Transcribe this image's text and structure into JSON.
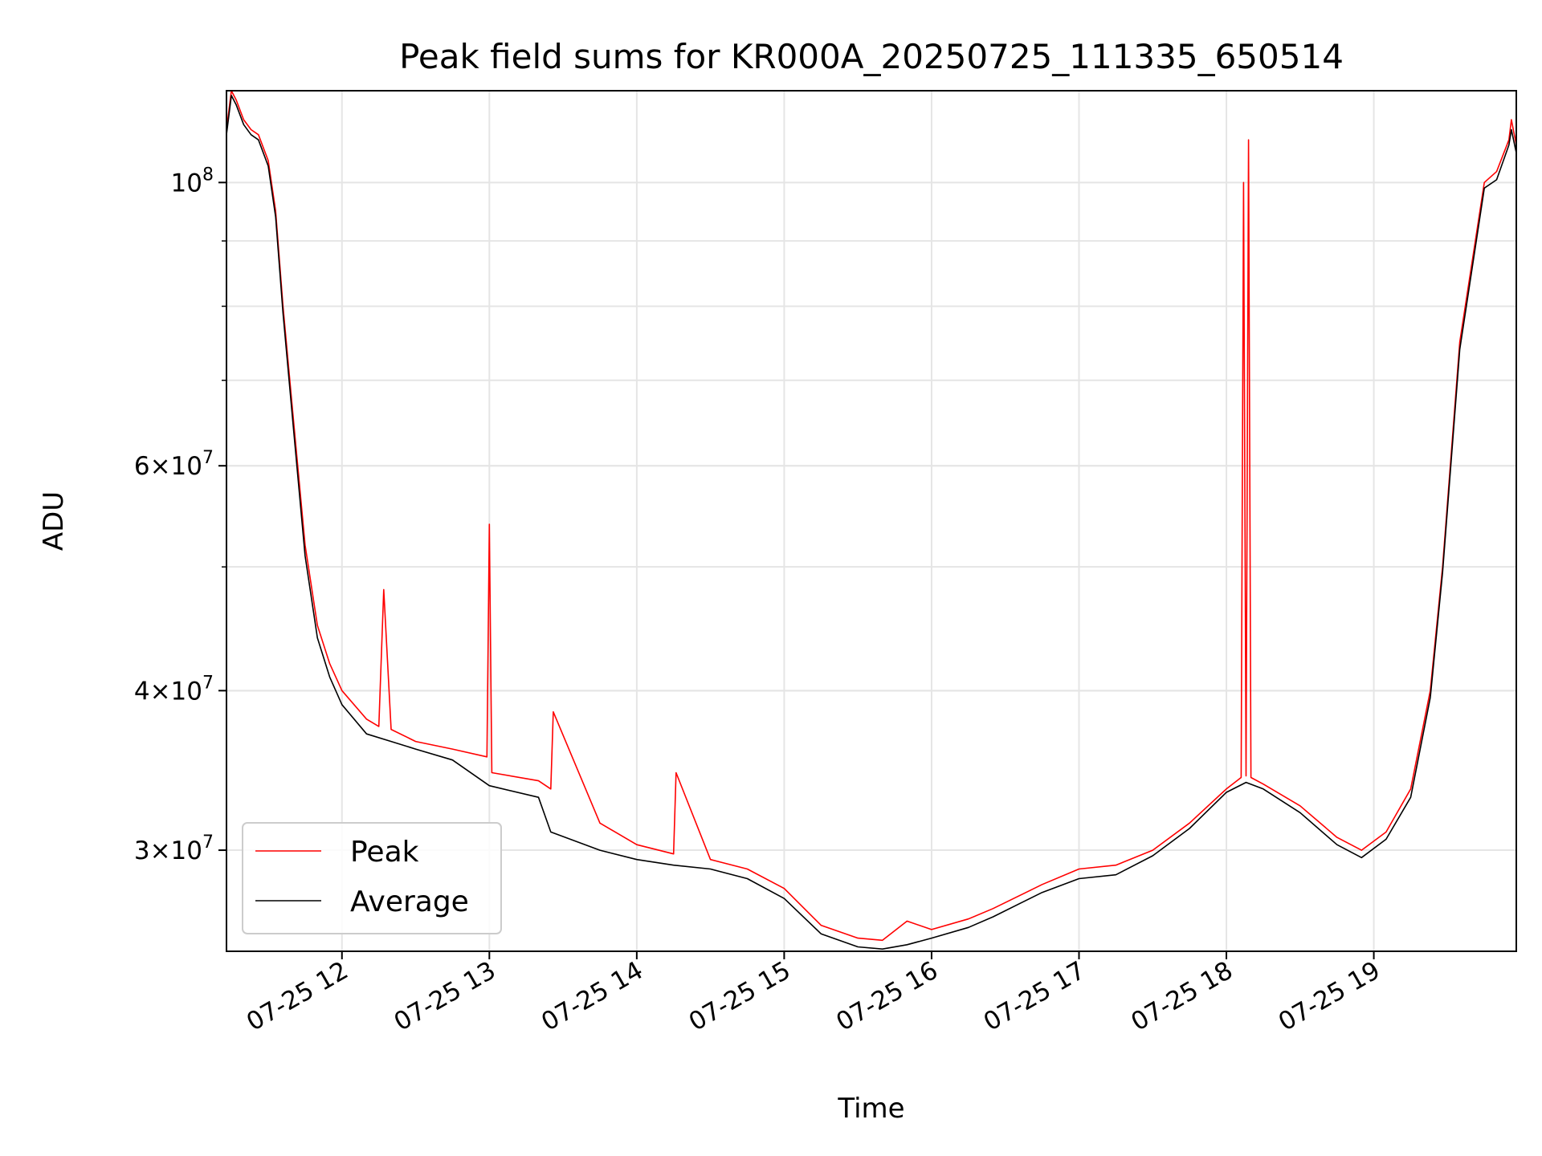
{
  "chart_data": {
    "type": "line",
    "title": "Peak field sums for KR000A_20250725_111335_650514",
    "xlabel": "Time",
    "ylabel": "ADU",
    "yscale": "log",
    "xlim": [
      "2025-07-25 11:13",
      "2025-07-25 19:58"
    ],
    "ylim": [
      25000000,
      118000000
    ],
    "x_tick_labels": [
      "07-25 12",
      "07-25 13",
      "07-25 14",
      "07-25 15",
      "07-25 16",
      "07-25 17",
      "07-25 18",
      "07-25 19"
    ],
    "y_tick_labels": [
      {
        "value": 100000000,
        "base": "10",
        "exp": "8",
        "mult": ""
      },
      {
        "value": 60000000,
        "base": "10",
        "exp": "7",
        "mult": "6×"
      },
      {
        "value": 40000000,
        "base": "10",
        "exp": "7",
        "mult": "4×"
      },
      {
        "value": 30000000,
        "base": "10",
        "exp": "7",
        "mult": "3×"
      }
    ],
    "grid": true,
    "legend_position": "lower-left",
    "series": [
      {
        "name": "Peak",
        "color": "#ff0000",
        "x": [
          "2025-07-25 11:13",
          "2025-07-25 11:14",
          "2025-07-25 11:15",
          "2025-07-25 11:17",
          "2025-07-25 11:20",
          "2025-07-25 11:23",
          "2025-07-25 11:26",
          "2025-07-25 11:30",
          "2025-07-25 11:33",
          "2025-07-25 11:36",
          "2025-07-25 11:40",
          "2025-07-25 11:45",
          "2025-07-25 11:50",
          "2025-07-25 11:55",
          "2025-07-25 12:00",
          "2025-07-25 12:10",
          "2025-07-25 12:15",
          "2025-07-25 12:17",
          "2025-07-25 12:20",
          "2025-07-25 12:30",
          "2025-07-25 12:45",
          "2025-07-25 12:59",
          "2025-07-25 13:00",
          "2025-07-25 13:01",
          "2025-07-25 13:20",
          "2025-07-25 13:25",
          "2025-07-25 13:26",
          "2025-07-25 13:45",
          "2025-07-25 14:00",
          "2025-07-25 14:15",
          "2025-07-25 14:16",
          "2025-07-25 14:30",
          "2025-07-25 14:45",
          "2025-07-25 15:00",
          "2025-07-25 15:15",
          "2025-07-25 15:30",
          "2025-07-25 15:40",
          "2025-07-25 15:50",
          "2025-07-25 16:00",
          "2025-07-25 16:15",
          "2025-07-25 16:25",
          "2025-07-25 16:45",
          "2025-07-25 17:00",
          "2025-07-25 17:15",
          "2025-07-25 17:30",
          "2025-07-25 17:45",
          "2025-07-25 18:00",
          "2025-07-25 18:06",
          "2025-07-25 18:07",
          "2025-07-25 18:08",
          "2025-07-25 18:09",
          "2025-07-25 18:10",
          "2025-07-25 18:15",
          "2025-07-25 18:30",
          "2025-07-25 18:45",
          "2025-07-25 18:55",
          "2025-07-25 19:05",
          "2025-07-25 19:15",
          "2025-07-25 19:23",
          "2025-07-25 19:28",
          "2025-07-25 19:35",
          "2025-07-25 19:45",
          "2025-07-25 19:50",
          "2025-07-25 19:55",
          "2025-07-25 19:56",
          "2025-07-25 19:58"
        ],
        "y": [
          110000000,
          114000000,
          118000000,
          116000000,
          112000000,
          110000000,
          109000000,
          104000000,
          95000000,
          80000000,
          66000000,
          52000000,
          45000000,
          42000000,
          40000000,
          38000000,
          37500000,
          48000000,
          37300000,
          36500000,
          36000000,
          35500000,
          54000000,
          34500000,
          34000000,
          33500000,
          38500000,
          31500000,
          30300000,
          29800000,
          34500000,
          29500000,
          29000000,
          28000000,
          26200000,
          25600000,
          25500000,
          26400000,
          26000000,
          26500000,
          27000000,
          28200000,
          29000000,
          29200000,
          30000000,
          31500000,
          33500000,
          34200000,
          100000000,
          34300000,
          108000000,
          34200000,
          33800000,
          32500000,
          30700000,
          30000000,
          31000000,
          33500000,
          40000000,
          50000000,
          75000000,
          100000000,
          102000000,
          108000000,
          112000000,
          107000000
        ]
      },
      {
        "name": "Average",
        "color": "#000000",
        "x": [
          "2025-07-25 11:13",
          "2025-07-25 11:14",
          "2025-07-25 11:15",
          "2025-07-25 11:17",
          "2025-07-25 11:20",
          "2025-07-25 11:23",
          "2025-07-25 11:26",
          "2025-07-25 11:30",
          "2025-07-25 11:33",
          "2025-07-25 11:36",
          "2025-07-25 11:40",
          "2025-07-25 11:45",
          "2025-07-25 11:50",
          "2025-07-25 11:55",
          "2025-07-25 12:00",
          "2025-07-25 12:10",
          "2025-07-25 12:20",
          "2025-07-25 12:30",
          "2025-07-25 12:45",
          "2025-07-25 13:00",
          "2025-07-25 13:20",
          "2025-07-25 13:25",
          "2025-07-25 13:45",
          "2025-07-25 14:00",
          "2025-07-25 14:15",
          "2025-07-25 14:30",
          "2025-07-25 14:45",
          "2025-07-25 15:00",
          "2025-07-25 15:15",
          "2025-07-25 15:30",
          "2025-07-25 15:40",
          "2025-07-25 15:50",
          "2025-07-25 16:00",
          "2025-07-25 16:15",
          "2025-07-25 16:25",
          "2025-07-25 16:45",
          "2025-07-25 17:00",
          "2025-07-25 17:15",
          "2025-07-25 17:30",
          "2025-07-25 17:45",
          "2025-07-25 18:00",
          "2025-07-25 18:08",
          "2025-07-25 18:15",
          "2025-07-25 18:30",
          "2025-07-25 18:45",
          "2025-07-25 18:55",
          "2025-07-25 19:05",
          "2025-07-25 19:15",
          "2025-07-25 19:23",
          "2025-07-25 19:28",
          "2025-07-25 19:35",
          "2025-07-25 19:45",
          "2025-07-25 19:50",
          "2025-07-25 19:55",
          "2025-07-25 19:56",
          "2025-07-25 19:58"
        ],
        "y": [
          109000000,
          113000000,
          117000000,
          115000000,
          111000000,
          109000000,
          108000000,
          103000000,
          94000000,
          79000000,
          65000000,
          51000000,
          44000000,
          41000000,
          39000000,
          37000000,
          36500000,
          36000000,
          35300000,
          33700000,
          33000000,
          31000000,
          30000000,
          29500000,
          29200000,
          29000000,
          28500000,
          27500000,
          25800000,
          25200000,
          25100000,
          25300000,
          25600000,
          26100000,
          26600000,
          27800000,
          28500000,
          28700000,
          29700000,
          31200000,
          33300000,
          33900000,
          33500000,
          32100000,
          30300000,
          29600000,
          30600000,
          33000000,
          39500000,
          49500000,
          74000000,
          99000000,
          100500000,
          107000000,
          110000000,
          105500000
        ]
      }
    ]
  }
}
